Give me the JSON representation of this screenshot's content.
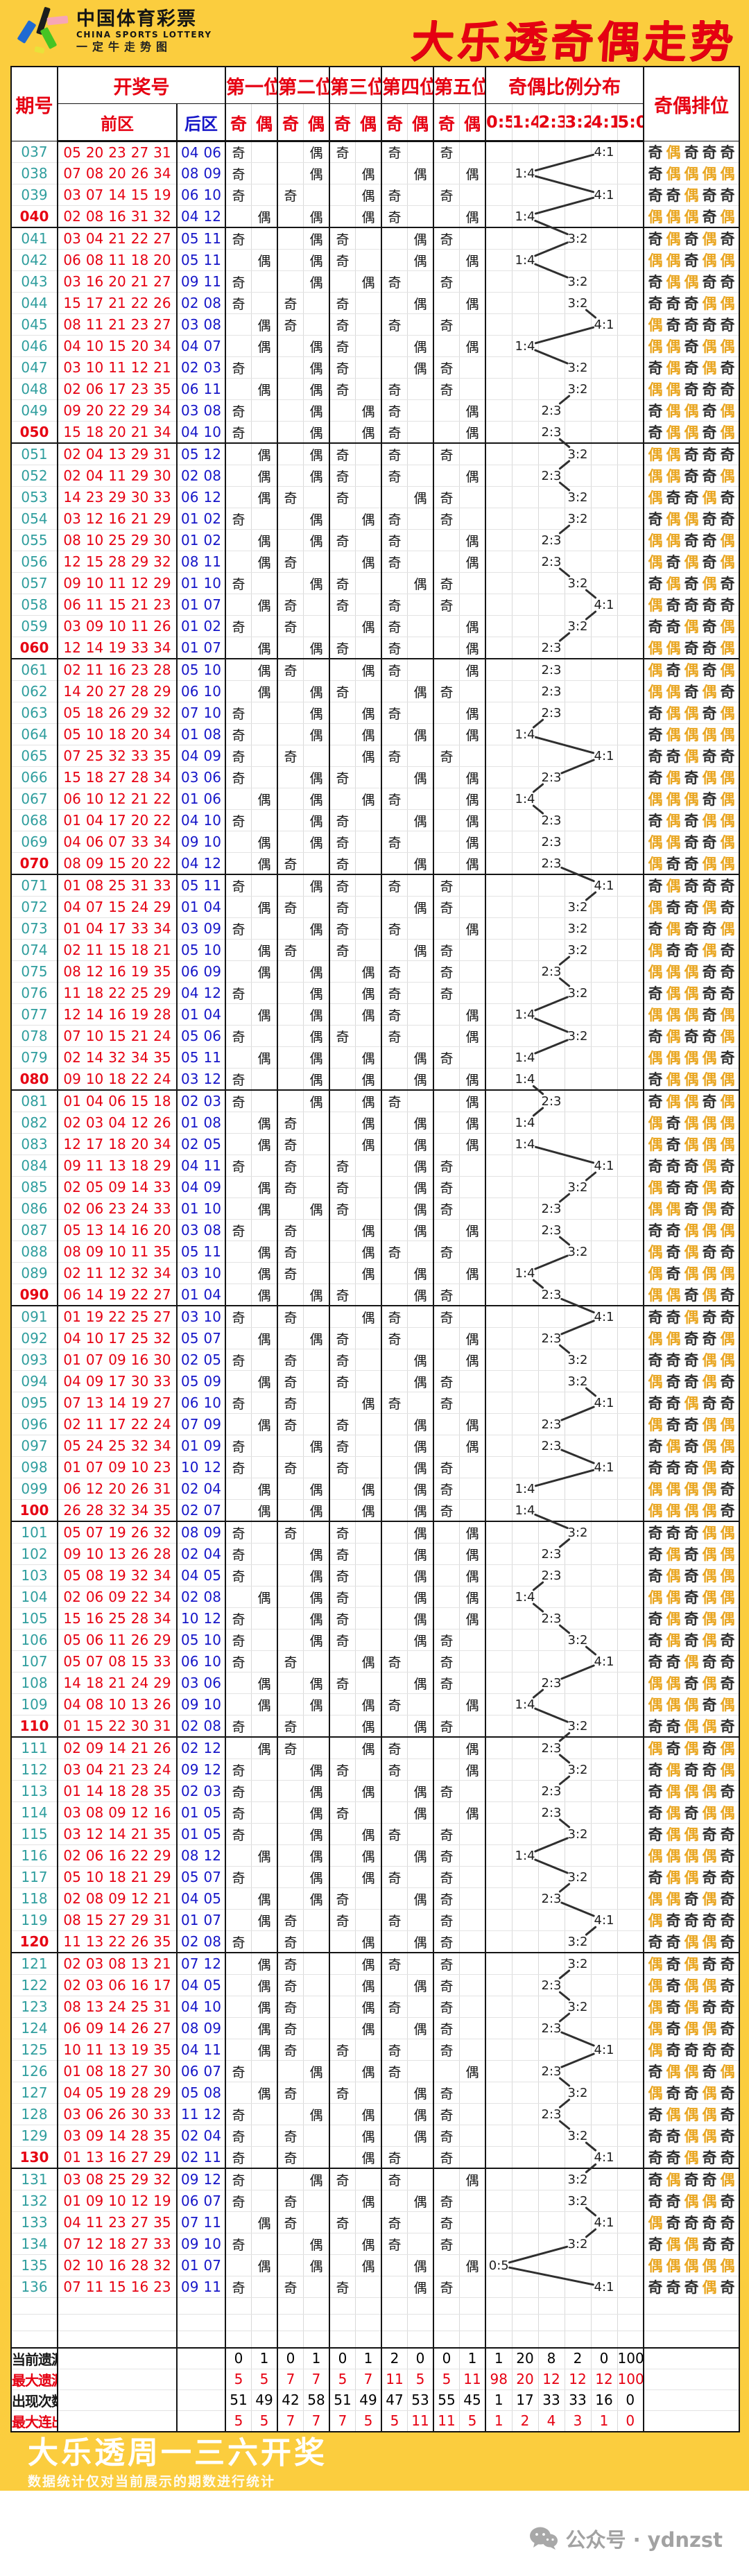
{
  "header": {
    "logo_cn": "中国体育彩票",
    "logo_en": "CHINA SPORTS LOTTERY",
    "logo_sub": "一定牛走势图",
    "title": "大乐透奇偶走势"
  },
  "table": {
    "headers": {
      "period": "期号",
      "draw": "开奖号",
      "front": "前区",
      "back": "后区",
      "positions": [
        "第一位",
        "第二位",
        "第三位",
        "第四位",
        "第五位"
      ],
      "odd": "奇",
      "even": "偶",
      "ratio_title": "奇偶比例分布",
      "ratio_cols": [
        "0:5",
        "1:4",
        "2:3",
        "3:2",
        "4:1",
        "5:0"
      ],
      "rank_title": "奇偶排位"
    },
    "rows": [
      [
        "037",
        "05 20 23 27 31",
        "04 06"
      ],
      [
        "038",
        "07 08 20 26 34",
        "08 09"
      ],
      [
        "039",
        "03 07 14 15 19",
        "06 10"
      ],
      [
        "040",
        "02 08 16 31 32",
        "04 12"
      ],
      [
        "041",
        "03 04 21 22 27",
        "05 11"
      ],
      [
        "042",
        "06 08 11 18 20",
        "05 11"
      ],
      [
        "043",
        "03 16 20 21 27",
        "09 11"
      ],
      [
        "044",
        "15 17 21 22 26",
        "02 08"
      ],
      [
        "045",
        "08 11 21 23 27",
        "03 08"
      ],
      [
        "046",
        "04 10 15 20 34",
        "04 07"
      ],
      [
        "047",
        "03 10 11 12 21",
        "02 03"
      ],
      [
        "048",
        "02 06 17 23 35",
        "06 11"
      ],
      [
        "049",
        "09 20 22 29 34",
        "03 08"
      ],
      [
        "050",
        "15 18 20 21 34",
        "04 10"
      ],
      [
        "051",
        "02 04 13 29 31",
        "05 12"
      ],
      [
        "052",
        "02 04 11 29 30",
        "02 08"
      ],
      [
        "053",
        "14 23 29 30 33",
        "06 12"
      ],
      [
        "054",
        "03 12 16 21 29",
        "01 02"
      ],
      [
        "055",
        "08 10 25 29 30",
        "01 02"
      ],
      [
        "056",
        "12 15 28 29 32",
        "08 11"
      ],
      [
        "057",
        "09 10 11 12 29",
        "01 10"
      ],
      [
        "058",
        "06 11 15 21 23",
        "01 07"
      ],
      [
        "059",
        "03 09 10 11 26",
        "01 02"
      ],
      [
        "060",
        "12 14 19 33 34",
        "01 07"
      ],
      [
        "061",
        "02 11 16 23 28",
        "05 10"
      ],
      [
        "062",
        "14 20 27 28 29",
        "06 10"
      ],
      [
        "063",
        "05 18 26 29 32",
        "07 10"
      ],
      [
        "064",
        "05 10 18 20 34",
        "01 08"
      ],
      [
        "065",
        "07 25 32 33 35",
        "04 09"
      ],
      [
        "066",
        "15 18 27 28 34",
        "03 06"
      ],
      [
        "067",
        "06 10 12 21 22",
        "01 06"
      ],
      [
        "068",
        "01 04 17 20 22",
        "04 10"
      ],
      [
        "069",
        "04 06 07 33 34",
        "09 10"
      ],
      [
        "070",
        "08 09 15 20 22",
        "04 12"
      ],
      [
        "071",
        "01 08 25 31 33",
        "05 11"
      ],
      [
        "072",
        "04 07 15 24 29",
        "01 04"
      ],
      [
        "073",
        "01 04 17 33 34",
        "03 09"
      ],
      [
        "074",
        "02 11 15 18 21",
        "05 10"
      ],
      [
        "075",
        "08 12 16 19 35",
        "06 09"
      ],
      [
        "076",
        "11 18 22 25 29",
        "04 12"
      ],
      [
        "077",
        "12 14 16 19 28",
        "01 04"
      ],
      [
        "078",
        "07 10 15 21 24",
        "05 06"
      ],
      [
        "079",
        "02 14 32 34 35",
        "05 11"
      ],
      [
        "080",
        "09 10 18 22 24",
        "03 12"
      ],
      [
        "081",
        "01 04 06 15 18",
        "02 03"
      ],
      [
        "082",
        "02 03 04 12 26",
        "01 08"
      ],
      [
        "083",
        "12 17 18 20 34",
        "02 05"
      ],
      [
        "084",
        "09 11 13 18 29",
        "04 11"
      ],
      [
        "085",
        "02 05 09 14 33",
        "04 09"
      ],
      [
        "086",
        "02 06 23 24 33",
        "01 10"
      ],
      [
        "087",
        "05 13 14 16 20",
        "03 08"
      ],
      [
        "088",
        "08 09 10 11 35",
        "05 11"
      ],
      [
        "089",
        "02 11 12 32 34",
        "03 10"
      ],
      [
        "090",
        "06 14 19 22 27",
        "01 04"
      ],
      [
        "091",
        "01 19 22 25 27",
        "03 10"
      ],
      [
        "092",
        "04 10 17 25 32",
        "05 07"
      ],
      [
        "093",
        "01 07 09 16 30",
        "02 05"
      ],
      [
        "094",
        "04 09 17 30 33",
        "05 09"
      ],
      [
        "095",
        "07 13 14 19 27",
        "06 10"
      ],
      [
        "096",
        "02 11 17 22 24",
        "07 09"
      ],
      [
        "097",
        "05 24 25 32 34",
        "01 09"
      ],
      [
        "098",
        "01 07 09 10 23",
        "10 12"
      ],
      [
        "099",
        "06 12 20 26 31",
        "02 04"
      ],
      [
        "100",
        "26 28 32 34 35",
        "02 07"
      ],
      [
        "101",
        "05 07 19 26 32",
        "08 09"
      ],
      [
        "102",
        "09 10 13 26 28",
        "02 04"
      ],
      [
        "103",
        "05 08 19 32 34",
        "04 05"
      ],
      [
        "104",
        "02 06 09 22 34",
        "02 08"
      ],
      [
        "105",
        "15 16 25 28 34",
        "10 12"
      ],
      [
        "106",
        "05 06 11 26 29",
        "05 10"
      ],
      [
        "107",
        "05 07 08 15 33",
        "06 10"
      ],
      [
        "108",
        "14 18 21 24 29",
        "03 06"
      ],
      [
        "109",
        "04 08 10 13 26",
        "09 10"
      ],
      [
        "110",
        "01 15 22 30 31",
        "02 08"
      ],
      [
        "111",
        "02 09 14 21 26",
        "02 12"
      ],
      [
        "112",
        "03 04 21 23 24",
        "09 12"
      ],
      [
        "113",
        "01 14 18 28 35",
        "02 03"
      ],
      [
        "114",
        "03 08 09 12 16",
        "01 05"
      ],
      [
        "115",
        "03 12 14 21 35",
        "01 05"
      ],
      [
        "116",
        "02 06 16 22 29",
        "08 12"
      ],
      [
        "117",
        "05 10 18 21 29",
        "05 07"
      ],
      [
        "118",
        "02 08 09 12 21",
        "04 05"
      ],
      [
        "119",
        "08 15 27 29 31",
        "01 07"
      ],
      [
        "120",
        "11 13 22 26 35",
        "02 08"
      ],
      [
        "121",
        "02 03 08 13 21",
        "07 12"
      ],
      [
        "122",
        "02 03 06 16 17",
        "04 05"
      ],
      [
        "123",
        "08 13 24 25 31",
        "04 10"
      ],
      [
        "124",
        "06 09 14 26 27",
        "08 09"
      ],
      [
        "125",
        "10 11 13 19 35",
        "04 11"
      ],
      [
        "126",
        "01 08 18 27 30",
        "06 07"
      ],
      [
        "127",
        "04 05 19 28 29",
        "05 08"
      ],
      [
        "128",
        "03 06 26 30 33",
        "11 12"
      ],
      [
        "129",
        "03 09 14 28 35",
        "02 04"
      ],
      [
        "130",
        "01 13 16 27 29",
        "02 11"
      ],
      [
        "131",
        "03 08 25 29 32",
        "09 12"
      ],
      [
        "132",
        "01 09 10 12 19",
        "06 07"
      ],
      [
        "133",
        "04 11 23 27 35",
        "07 11"
      ],
      [
        "134",
        "07 12 18 27 33",
        "09 10"
      ],
      [
        "135",
        "02 10 16 28 32",
        "01 07"
      ],
      [
        "136",
        "07 11 15 16 23",
        "09 11"
      ]
    ],
    "stats": [
      {
        "label": "当前遗漏",
        "style": "normal",
        "values": [
          "0",
          "1",
          "0",
          "1",
          "0",
          "1",
          "2",
          "0",
          "0",
          "1",
          "1",
          "20",
          "8",
          "2",
          "0",
          "100"
        ]
      },
      {
        "label": "最大遗漏",
        "style": "red",
        "values": [
          "5",
          "5",
          "7",
          "7",
          "5",
          "7",
          "11",
          "5",
          "5",
          "11",
          "98",
          "20",
          "12",
          "12",
          "12",
          "100"
        ]
      },
      {
        "label": "出现次数",
        "style": "normal",
        "values": [
          "51",
          "49",
          "42",
          "58",
          "51",
          "49",
          "47",
          "53",
          "55",
          "45",
          "1",
          "17",
          "33",
          "33",
          "16",
          "0"
        ]
      },
      {
        "label": "最大连出",
        "style": "red",
        "values": [
          "5",
          "5",
          "7",
          "7",
          "7",
          "5",
          "5",
          "11",
          "11",
          "5",
          "1",
          "2",
          "4",
          "3",
          "1",
          "0"
        ]
      }
    ],
    "parity_odd_char": "奇",
    "parity_even_char": "偶"
  },
  "footer": {
    "line1": "大乐透周一三六开奖",
    "line2": "数据统计仅对当前展示的期数进行统计",
    "wechat": "公众号 · ydnzst"
  },
  "colors": {
    "band_yellow": "#fbcd3e",
    "accent_red": "#e60012",
    "period_teal": "#2f9e9e",
    "back_blue": "#1515c8",
    "even_gold": "#e9a51f",
    "trend_line": "#2f2f2f"
  }
}
